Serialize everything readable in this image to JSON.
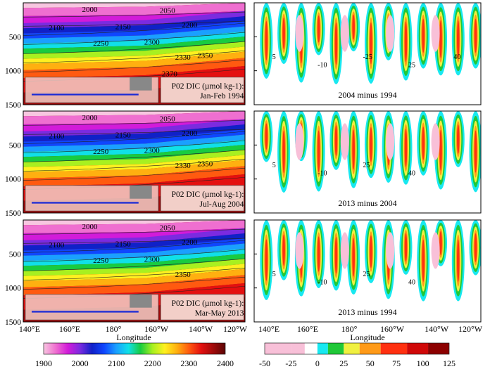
{
  "chart_data": {
    "type": "heatmap",
    "x_axis": {
      "label": "Longitude",
      "ticks": [
        "140°E",
        "160°E",
        "180°",
        "160°W",
        "140°W",
        "120°W"
      ]
    },
    "y_axis": {
      "label": "",
      "ticks": [
        "500",
        "1000",
        "1500"
      ],
      "ylim": [
        0,
        1500
      ],
      "inverted": true
    },
    "panels": [
      {
        "id": "dic-1994",
        "kind": "dic",
        "label_lines": [
          "P02 DIC (µmol kg-1):",
          "Jan-Feb 1994"
        ],
        "contour_labels": [
          "2000",
          "2050",
          "2100",
          "2150",
          "2200",
          "2250",
          "2300",
          "2330",
          "2350",
          "2370"
        ]
      },
      {
        "id": "diff-2004-1994",
        "kind": "diff",
        "label": "2004 minus 1994",
        "contour_labels": [
          "5",
          "-10",
          "-25",
          "25",
          "40"
        ]
      },
      {
        "id": "dic-2004",
        "kind": "dic",
        "label_lines": [
          "P02 DIC (µmol kg-1):",
          "Jul-Aug 2004"
        ],
        "contour_labels": [
          "2000",
          "2050",
          "2100",
          "2150",
          "2200",
          "2250",
          "2300",
          "2330",
          "2350"
        ]
      },
      {
        "id": "diff-2013-2004",
        "kind": "diff",
        "label": "2013 minus 2004",
        "contour_labels": [
          "5",
          "-10",
          "25",
          "40"
        ]
      },
      {
        "id": "dic-2013",
        "kind": "dic",
        "label_lines": [
          "P02 DIC (µmol kg-1):",
          "Mar-May 2013"
        ],
        "contour_labels": [
          "2000",
          "2050",
          "2100",
          "2150",
          "2200",
          "2250",
          "2300",
          "2350"
        ]
      },
      {
        "id": "diff-2013-1994",
        "kind": "diff",
        "label": "2013 minus 1994",
        "contour_labels": [
          "5",
          "-10",
          "25",
          "40"
        ]
      }
    ],
    "colorbars": [
      {
        "id": "dic-colorbar",
        "ticks": [
          "1900",
          "2000",
          "2100",
          "2200",
          "2300",
          "2400"
        ],
        "range": [
          1900,
          2400
        ]
      },
      {
        "id": "diff-colorbar",
        "ticks": [
          "-50",
          "-25",
          "0",
          "25",
          "50",
          "75",
          "100",
          "125"
        ],
        "range": [
          -50,
          125
        ]
      }
    ],
    "colors": {
      "dic_scale": [
        "#f7c6e0",
        "#ef6fd0",
        "#d21bd9",
        "#7b2be0",
        "#1021c8",
        "#0f46ff",
        "#1aa0ff",
        "#10e0e8",
        "#18cc40",
        "#a8f020",
        "#fff020",
        "#ffb010",
        "#ff5a10",
        "#e41010",
        "#a00a0a",
        "#5a0505"
      ],
      "diff_scale": [
        "#f8c0d8",
        "#ffffff",
        "#18e8f0",
        "#20c838",
        "#f0f040",
        "#ff9a18",
        "#ff3010",
        "#d00808",
        "#8c0000"
      ]
    }
  }
}
